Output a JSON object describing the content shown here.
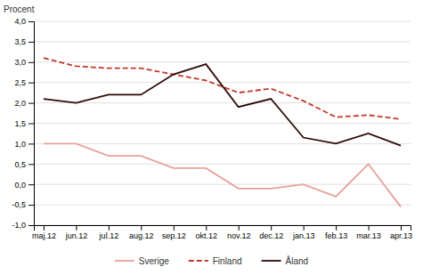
{
  "chart_data": {
    "type": "line",
    "ylabel": "Procent",
    "categories": [
      "maj.12",
      "jun.12",
      "jul.12",
      "aug.12",
      "sep.12",
      "okt.12",
      "nov.12",
      "dec.12",
      "jan.13",
      "feb.13",
      "mar.13",
      "apr.13"
    ],
    "series": [
      {
        "name": "Sverige",
        "color": "#e8a09a",
        "line_style": "solid",
        "values": [
          1.0,
          1.0,
          0.7,
          0.7,
          0.4,
          0.4,
          -0.1,
          -0.1,
          0.0,
          -0.3,
          0.5,
          -0.55
        ]
      },
      {
        "name": "Finland",
        "color": "#c0392b",
        "line_style": "dashed",
        "values": [
          3.1,
          2.9,
          2.85,
          2.85,
          2.7,
          2.55,
          2.25,
          2.35,
          2.05,
          1.65,
          1.7,
          1.6
        ]
      },
      {
        "name": "Åland",
        "color": "#2d0808",
        "line_style": "solid",
        "values": [
          2.1,
          2.0,
          2.2,
          2.2,
          2.7,
          2.95,
          1.9,
          2.1,
          1.15,
          1.0,
          1.25,
          0.95
        ]
      }
    ],
    "ylim": [
      -1.0,
      4.0
    ],
    "yticks": [
      {
        "value": -1.0,
        "label": "-1,0"
      },
      {
        "value": -0.5,
        "label": "-0,5"
      },
      {
        "value": 0.0,
        "label": "0,0"
      },
      {
        "value": 0.5,
        "label": "0,5"
      },
      {
        "value": 1.0,
        "label": "1,0"
      },
      {
        "value": 1.5,
        "label": "1,5"
      },
      {
        "value": 2.0,
        "label": "2,0"
      },
      {
        "value": 2.5,
        "label": "2,5"
      },
      {
        "value": 3.0,
        "label": "3,0"
      },
      {
        "value": 3.5,
        "label": "3,5"
      },
      {
        "value": 4.0,
        "label": "4,0"
      }
    ],
    "grid": true,
    "legend": "bottom"
  }
}
